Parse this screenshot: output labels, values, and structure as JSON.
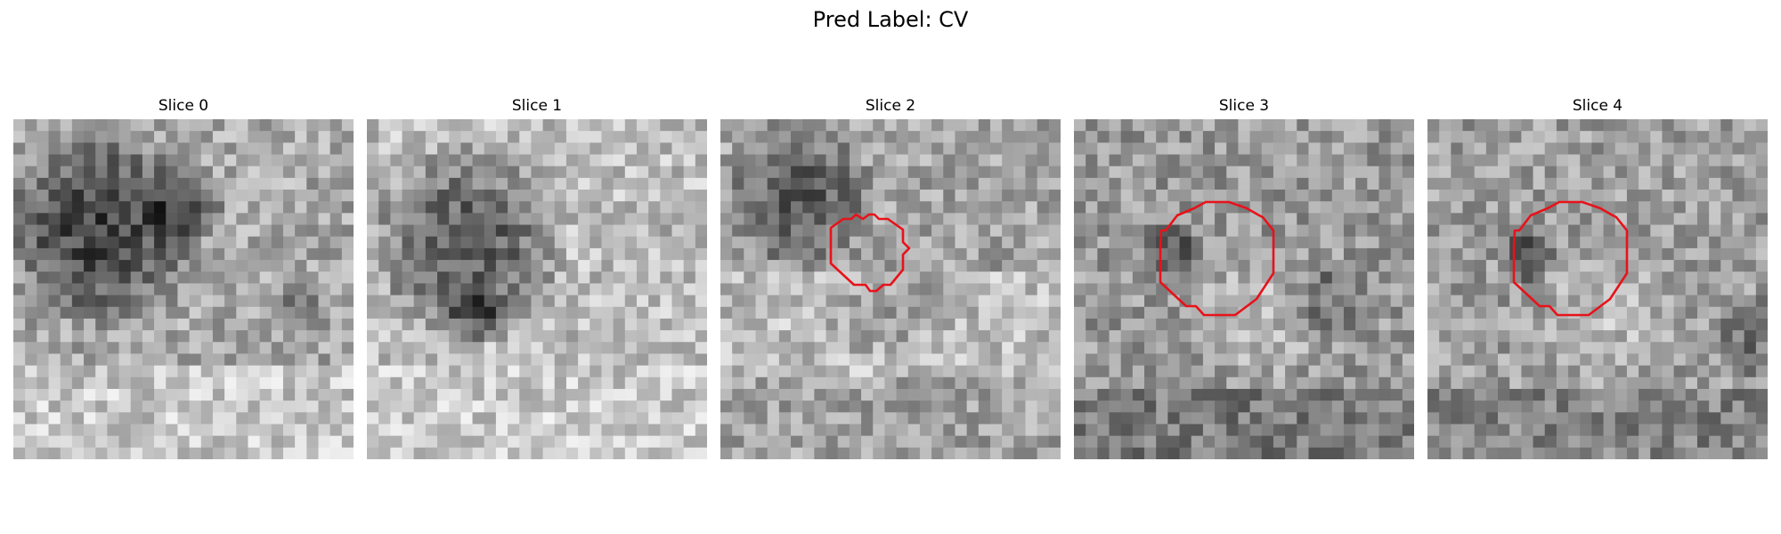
{
  "figure": {
    "title": "Pred Label: CV"
  },
  "slices": [
    {
      "title": "Slice 0",
      "has_contour": false
    },
    {
      "title": "Slice 1",
      "has_contour": false
    },
    {
      "title": "Slice 2",
      "has_contour": true
    },
    {
      "title": "Slice 3",
      "has_contour": true
    },
    {
      "title": "Slice 4",
      "has_contour": true
    }
  ],
  "colors": {
    "contour": "#e8121a",
    "background": "#ffffff"
  }
}
